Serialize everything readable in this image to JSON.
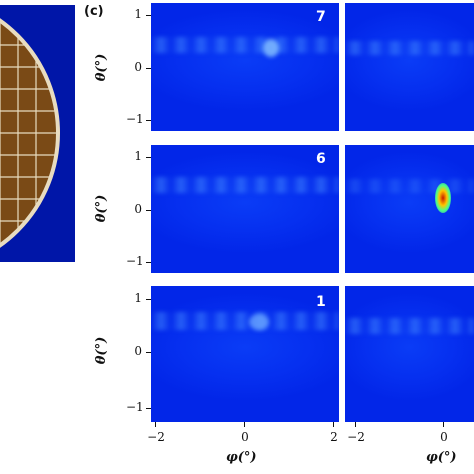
{
  "panel_label": "(c)",
  "plots": [
    {
      "number": "7"
    },
    {
      "number": "6"
    },
    {
      "number": "1"
    }
  ],
  "y_axis": {
    "label": "θ(°)",
    "ticks": [
      "1",
      "0",
      "−1"
    ]
  },
  "x_axis": {
    "label": "φ(°)",
    "ticks": [
      "−2",
      "0",
      "2"
    ],
    "right_ticks": [
      "−2",
      "0"
    ]
  },
  "colors": {
    "colormap_background": "#0630f0",
    "left_panel_background": "#0016a8",
    "disk_fill": "#7a4a16",
    "disk_rim": "#e8dcc0"
  }
}
